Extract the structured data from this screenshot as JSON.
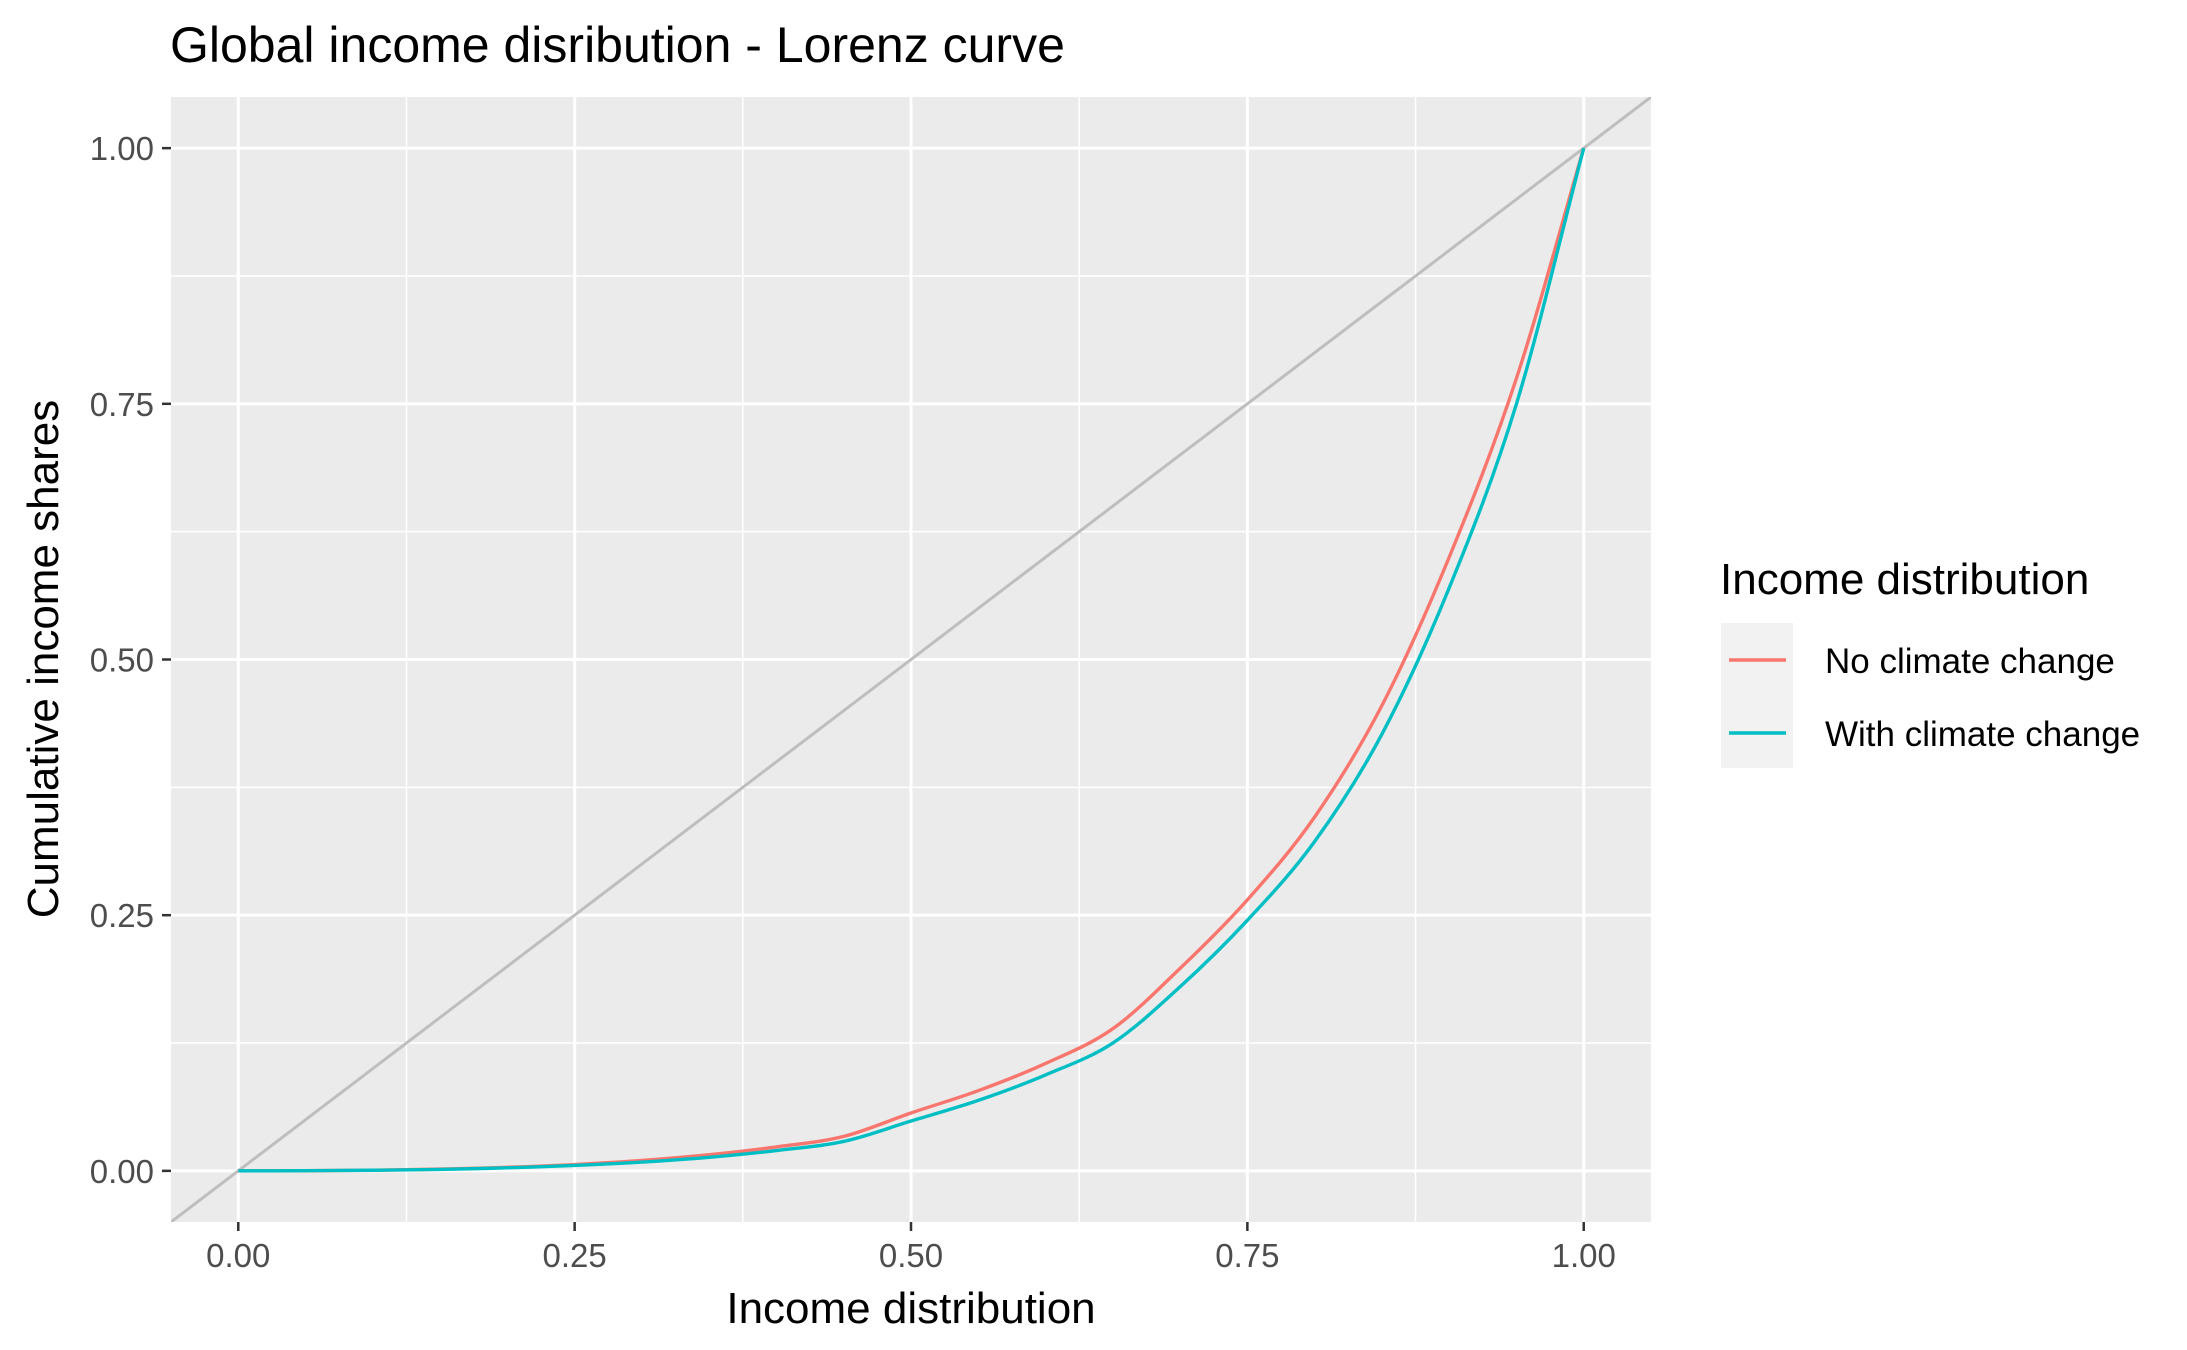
{
  "chart_data": {
    "type": "line",
    "title": "Global income disribution - Lorenz curve",
    "xlabel": "Income distribution",
    "ylabel": "Cumulative income shares",
    "xlim": [
      -0.05,
      1.05
    ],
    "ylim": [
      -0.05,
      1.05
    ],
    "x_ticks": [
      "0.00",
      "0.25",
      "0.50",
      "0.75",
      "1.00"
    ],
    "y_ticks": [
      "0.00",
      "0.25",
      "0.50",
      "0.75",
      "1.00"
    ],
    "grid": true,
    "legend": {
      "title": "Income distribution",
      "position": "right",
      "entries": [
        "No climate change",
        "With climate change"
      ]
    },
    "reference_line": {
      "name": "Line of equality",
      "x": [
        -0.05,
        1.05
      ],
      "y": [
        -0.05,
        1.05
      ],
      "color": "#bebebe"
    },
    "series": [
      {
        "name": "No climate change",
        "color": "#F8766D",
        "x": [
          0,
          0.05,
          0.1,
          0.15,
          0.2,
          0.25,
          0.3,
          0.35,
          0.4,
          0.45,
          0.5,
          0.55,
          0.6,
          0.65,
          0.7,
          0.75,
          0.8,
          0.85,
          0.9,
          0.95,
          1.0
        ],
        "y": [
          0,
          0.0002,
          0.0007,
          0.0017,
          0.0035,
          0.0062,
          0.0102,
          0.0158,
          0.0234,
          0.0337,
          0.0566,
          0.0784,
          0.105,
          0.139,
          0.198,
          0.265,
          0.346,
          0.455,
          0.6,
          0.775,
          1.0
        ]
      },
      {
        "name": "With climate change",
        "color": "#00BFC4",
        "x": [
          0,
          0.05,
          0.1,
          0.15,
          0.2,
          0.25,
          0.3,
          0.35,
          0.4,
          0.45,
          0.5,
          0.55,
          0.6,
          0.65,
          0.7,
          0.75,
          0.8,
          0.85,
          0.9,
          0.95,
          1.0
        ],
        "y": [
          0,
          0.0002,
          0.0006,
          0.0014,
          0.003,
          0.0053,
          0.0086,
          0.0133,
          0.0199,
          0.0288,
          0.0487,
          0.0689,
          0.0938,
          0.125,
          0.18,
          0.245,
          0.322,
          0.427,
          0.57,
          0.75,
          1.0
        ]
      }
    ]
  }
}
